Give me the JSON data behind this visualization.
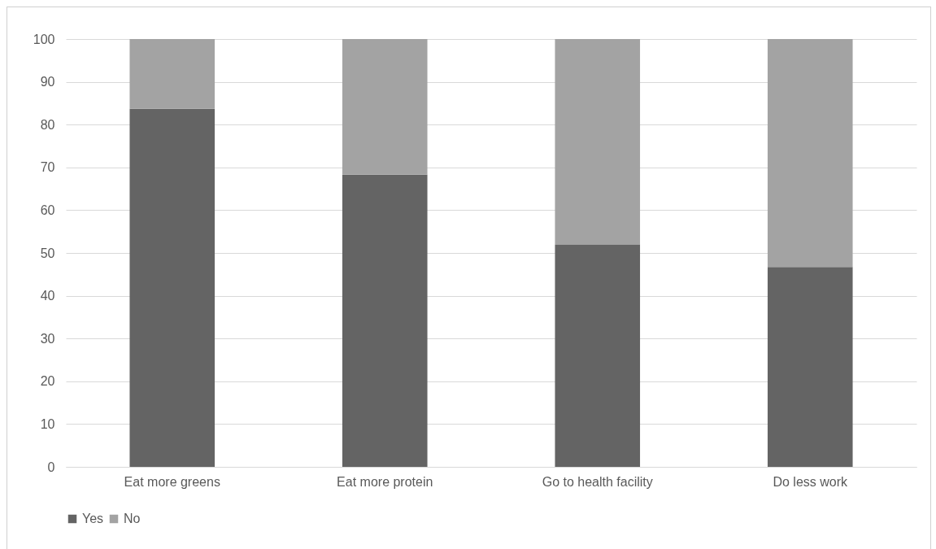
{
  "chart_data": {
    "type": "bar",
    "stacked": true,
    "categories": [
      "Eat more greens",
      "Eat more protein",
      "Go to health facility",
      "Do less work"
    ],
    "series": [
      {
        "name": "Yes",
        "color": "#646464",
        "values": [
          83.7,
          68.3,
          51.9,
          46.7
        ]
      },
      {
        "name": "No",
        "color": "#a3a3a3",
        "values": [
          16.3,
          31.7,
          48.1,
          53.3
        ]
      }
    ],
    "ylim": [
      0,
      100
    ],
    "yticks": [
      0,
      10,
      20,
      30,
      40,
      50,
      60,
      70,
      80,
      90,
      100
    ],
    "grid": "y",
    "legend": "bottom"
  }
}
